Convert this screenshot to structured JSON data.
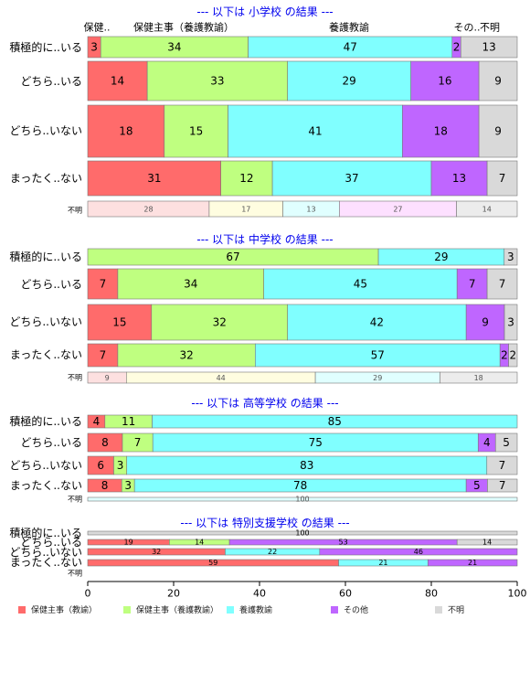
{
  "chart_data": {
    "type": "bar",
    "orientation": "horizontal",
    "stacked": "percent",
    "colors": {
      "health_teacher": "#ff6b6b",
      "health_yogo": "#bfff80",
      "yogo": "#80ffff",
      "other": "#bf66ff",
      "unknown": "#d9d9d9"
    },
    "series_names": [
      "保健主事（教諭）",
      "保健主事（養護教諭）",
      "養護教諭",
      "その他",
      "不明"
    ],
    "top_series_labels": [
      "保健..",
      "保健主事（養護教諭）",
      "養護教諭",
      "その..",
      "不明"
    ],
    "x_ticks": [
      "0",
      "20",
      "40",
      "60",
      "80",
      "100"
    ],
    "xlim": [
      0,
      100
    ],
    "panels": [
      {
        "title": "--- 以下は 小学校 の結果 ---",
        "rows": [
          {
            "label": "積極的に..いる",
            "values": [
              3,
              34,
              47,
              2,
              13
            ]
          },
          {
            "label": "どちら..いる",
            "values": [
              14,
              33,
              29,
              16,
              9
            ]
          },
          {
            "label": "どちら..いない",
            "values": [
              18,
              15,
              41,
              18,
              9
            ]
          },
          {
            "label": "まったく..ない",
            "values": [
              31,
              12,
              37,
              13,
              7
            ]
          },
          {
            "label": "不明",
            "values": [
              28,
              17,
              13,
              27,
              14
            ]
          }
        ]
      },
      {
        "title": "--- 以下は 中学校 の結果 ---",
        "rows": [
          {
            "label": "積極的に..いる",
            "values": [
              0,
              67,
              29,
              0,
              3
            ]
          },
          {
            "label": "どちら..いる",
            "values": [
              7,
              34,
              45,
              7,
              7
            ]
          },
          {
            "label": "どちら..いない",
            "values": [
              15,
              32,
              42,
              9,
              3
            ]
          },
          {
            "label": "まったく..ない",
            "values": [
              7,
              32,
              57,
              2,
              2
            ]
          },
          {
            "label": "不明",
            "values": [
              9,
              44,
              29,
              0,
              18
            ]
          }
        ]
      },
      {
        "title": "--- 以下は 高等学校 の結果 ---",
        "rows": [
          {
            "label": "積極的に..いる",
            "values": [
              4,
              11,
              85,
              0,
              0
            ]
          },
          {
            "label": "どちら..いる",
            "values": [
              8,
              7,
              75,
              4,
              5
            ]
          },
          {
            "label": "どちら..いない",
            "values": [
              6,
              3,
              83,
              0,
              7
            ]
          },
          {
            "label": "まったく..ない",
            "values": [
              8,
              3,
              78,
              5,
              7
            ]
          },
          {
            "label": "不明",
            "values": [
              0,
              0,
              100,
              0,
              0
            ]
          }
        ]
      },
      {
        "title": "--- 以下は 特別支援学校 の結果 ---",
        "rows": [
          {
            "label": "積極的に..いる",
            "values": [
              0,
              0,
              0,
              0,
              100
            ]
          },
          {
            "label": "どちら..いる",
            "values": [
              19,
              14,
              0,
              53,
              14
            ]
          },
          {
            "label": "どちら..いない",
            "values": [
              32,
              0,
              22,
              46,
              0
            ]
          },
          {
            "label": "まったく..ない",
            "values": [
              59,
              0,
              21,
              21,
              0
            ]
          },
          {
            "label": "不明",
            "values": [
              0,
              0,
              0,
              0,
              0
            ]
          }
        ]
      }
    ]
  }
}
